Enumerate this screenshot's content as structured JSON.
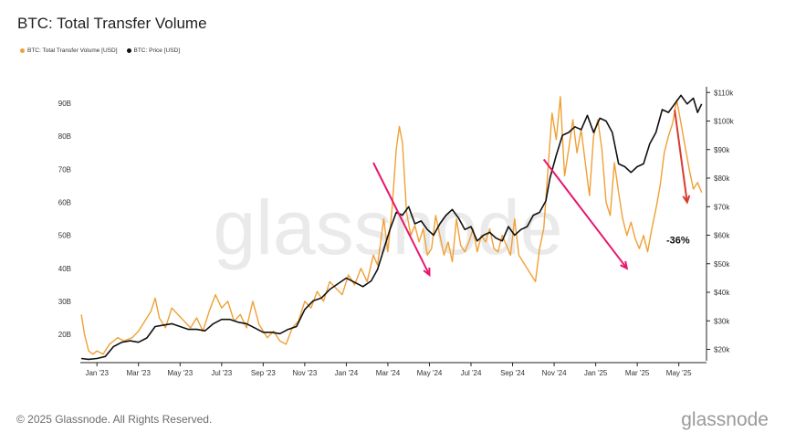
{
  "page": {
    "title": "BTC: Total Transfer Volume",
    "footer_copyright": "© 2025 Glassnode. All Rights Reserved.",
    "footer_brand": "glassnode",
    "watermark": "glassnode"
  },
  "colors": {
    "transfer_volume": "#f0a035",
    "price": "#111111",
    "arrow_pink": "#e6186d",
    "arrow_red": "#d93a2f"
  },
  "chart_data": {
    "type": "line",
    "left_axis": {
      "ticks": [
        "20B",
        "30B",
        "40B",
        "50B",
        "60B",
        "70B",
        "80B",
        "90B"
      ],
      "values": [
        20,
        30,
        40,
        50,
        60,
        70,
        80,
        90
      ],
      "ylim": [
        12,
        95
      ]
    },
    "right_axis": {
      "ticks": [
        "$20k",
        "$30k",
        "$40k",
        "$50k",
        "$60k",
        "$70k",
        "$80k",
        "$90k",
        "$100k",
        "$110k"
      ],
      "values": [
        20,
        30,
        40,
        50,
        60,
        70,
        80,
        90,
        100,
        110
      ],
      "ylim": [
        16,
        112
      ]
    },
    "x_axis": {
      "ticks": [
        "Jan '23",
        "Mar '23",
        "May '23",
        "Jul '23",
        "Sep '23",
        "Nov '23",
        "Jan '24",
        "Mar '24",
        "May '24",
        "Jul '24",
        "Sep '24",
        "Nov '24",
        "Jan '25",
        "Mar '25",
        "May '25"
      ],
      "values": [
        0,
        2,
        4,
        6,
        8,
        10,
        12,
        14,
        16,
        18,
        20,
        22,
        24,
        26,
        28
      ],
      "xlim": [
        -0.8,
        29.2
      ]
    },
    "legend": [
      "BTC: Total Transfer Volume [USD]",
      "BTC: Price [USD]"
    ],
    "series": [
      {
        "name": "BTC: Total Transfer Volume [USD]",
        "axis": "left",
        "points": [
          [
            -0.75,
            26
          ],
          [
            -0.6,
            20
          ],
          [
            -0.4,
            15
          ],
          [
            -0.2,
            14
          ],
          [
            0,
            15
          ],
          [
            0.3,
            14
          ],
          [
            0.6,
            17
          ],
          [
            1.0,
            19
          ],
          [
            1.3,
            18
          ],
          [
            1.7,
            19
          ],
          [
            2.0,
            21
          ],
          [
            2.3,
            24
          ],
          [
            2.6,
            27
          ],
          [
            2.8,
            31
          ],
          [
            3.0,
            25
          ],
          [
            3.3,
            22
          ],
          [
            3.6,
            28
          ],
          [
            3.9,
            26
          ],
          [
            4.2,
            24
          ],
          [
            4.5,
            22
          ],
          [
            4.8,
            25
          ],
          [
            5.1,
            21
          ],
          [
            5.4,
            27
          ],
          [
            5.7,
            32
          ],
          [
            6.0,
            28
          ],
          [
            6.3,
            30
          ],
          [
            6.6,
            24
          ],
          [
            6.9,
            26
          ],
          [
            7.2,
            22
          ],
          [
            7.5,
            30
          ],
          [
            7.8,
            23
          ],
          [
            8.2,
            19
          ],
          [
            8.5,
            21
          ],
          [
            8.8,
            18
          ],
          [
            9.1,
            17
          ],
          [
            9.4,
            22
          ],
          [
            9.7,
            24
          ],
          [
            10.0,
            30
          ],
          [
            10.3,
            28
          ],
          [
            10.6,
            33
          ],
          [
            10.9,
            30
          ],
          [
            11.2,
            36
          ],
          [
            11.5,
            34
          ],
          [
            11.8,
            32
          ],
          [
            12.1,
            38
          ],
          [
            12.4,
            35
          ],
          [
            12.7,
            40
          ],
          [
            13.0,
            36
          ],
          [
            13.3,
            44
          ],
          [
            13.5,
            41
          ],
          [
            13.8,
            55
          ],
          [
            14.0,
            45
          ],
          [
            14.2,
            58
          ],
          [
            14.4,
            76
          ],
          [
            14.55,
            83
          ],
          [
            14.7,
            78
          ],
          [
            14.9,
            57
          ],
          [
            15.1,
            50
          ],
          [
            15.3,
            53
          ],
          [
            15.5,
            48
          ],
          [
            15.7,
            52
          ],
          [
            15.9,
            44
          ],
          [
            16.1,
            46
          ],
          [
            16.3,
            56
          ],
          [
            16.5,
            50
          ],
          [
            16.7,
            44
          ],
          [
            16.9,
            48
          ],
          [
            17.1,
            42
          ],
          [
            17.3,
            55
          ],
          [
            17.5,
            47
          ],
          [
            17.7,
            45
          ],
          [
            17.9,
            48
          ],
          [
            18.1,
            52
          ],
          [
            18.3,
            45
          ],
          [
            18.5,
            50
          ],
          [
            18.7,
            48
          ],
          [
            18.9,
            52
          ],
          [
            19.1,
            46
          ],
          [
            19.3,
            45
          ],
          [
            19.5,
            50
          ],
          [
            19.7,
            47
          ],
          [
            19.9,
            44
          ],
          [
            20.1,
            55
          ],
          [
            20.3,
            44
          ],
          [
            20.5,
            42
          ],
          [
            20.7,
            40
          ],
          [
            20.9,
            38
          ],
          [
            21.1,
            36
          ],
          [
            21.3,
            46
          ],
          [
            21.5,
            52
          ],
          [
            21.7,
            70
          ],
          [
            21.9,
            87
          ],
          [
            22.1,
            79
          ],
          [
            22.3,
            92
          ],
          [
            22.5,
            68
          ],
          [
            22.7,
            76
          ],
          [
            22.9,
            85
          ],
          [
            23.1,
            75
          ],
          [
            23.3,
            82
          ],
          [
            23.5,
            72
          ],
          [
            23.7,
            62
          ],
          [
            23.9,
            80
          ],
          [
            24.1,
            85
          ],
          [
            24.3,
            76
          ],
          [
            24.5,
            60
          ],
          [
            24.7,
            56
          ],
          [
            24.9,
            72
          ],
          [
            25.1,
            63
          ],
          [
            25.3,
            55
          ],
          [
            25.5,
            50
          ],
          [
            25.7,
            54
          ],
          [
            25.9,
            49
          ],
          [
            26.1,
            46
          ],
          [
            26.3,
            50
          ],
          [
            26.5,
            45
          ],
          [
            26.7,
            52
          ],
          [
            26.9,
            58
          ],
          [
            27.1,
            65
          ],
          [
            27.3,
            75
          ],
          [
            27.5,
            80
          ],
          [
            27.7,
            84
          ],
          [
            27.9,
            91
          ],
          [
            28.1,
            84
          ],
          [
            28.3,
            77
          ],
          [
            28.5,
            70
          ],
          [
            28.7,
            64
          ],
          [
            28.9,
            66
          ],
          [
            29.1,
            63
          ]
        ]
      },
      {
        "name": "BTC: Price [USD]",
        "axis": "right",
        "points": [
          [
            -0.75,
            16.8
          ],
          [
            -0.4,
            16.5
          ],
          [
            0,
            16.8
          ],
          [
            0.4,
            17.5
          ],
          [
            0.8,
            21
          ],
          [
            1.2,
            22.5
          ],
          [
            1.6,
            23
          ],
          [
            2.0,
            22.5
          ],
          [
            2.4,
            24
          ],
          [
            2.8,
            28
          ],
          [
            3.2,
            28.5
          ],
          [
            3.6,
            29
          ],
          [
            4.0,
            28
          ],
          [
            4.4,
            27
          ],
          [
            4.8,
            27
          ],
          [
            5.2,
            26.5
          ],
          [
            5.6,
            29
          ],
          [
            6.0,
            30.5
          ],
          [
            6.4,
            30.5
          ],
          [
            6.8,
            29.5
          ],
          [
            7.2,
            29
          ],
          [
            7.6,
            27.5
          ],
          [
            8.0,
            26
          ],
          [
            8.4,
            26
          ],
          [
            8.8,
            25.5
          ],
          [
            9.2,
            27
          ],
          [
            9.6,
            28
          ],
          [
            10.0,
            34
          ],
          [
            10.4,
            37
          ],
          [
            10.8,
            38
          ],
          [
            11.2,
            41
          ],
          [
            11.6,
            43
          ],
          [
            12.0,
            45
          ],
          [
            12.4,
            43.5
          ],
          [
            12.8,
            42
          ],
          [
            13.2,
            44
          ],
          [
            13.5,
            48
          ],
          [
            13.8,
            55
          ],
          [
            14.1,
            62
          ],
          [
            14.4,
            68
          ],
          [
            14.7,
            67
          ],
          [
            15.0,
            70
          ],
          [
            15.3,
            64
          ],
          [
            15.6,
            65
          ],
          [
            15.9,
            62
          ],
          [
            16.2,
            60
          ],
          [
            16.5,
            64
          ],
          [
            16.8,
            67
          ],
          [
            17.1,
            69
          ],
          [
            17.4,
            66
          ],
          [
            17.7,
            62
          ],
          [
            18.0,
            63
          ],
          [
            18.3,
            58
          ],
          [
            18.6,
            60
          ],
          [
            18.9,
            61
          ],
          [
            19.2,
            59
          ],
          [
            19.5,
            58
          ],
          [
            19.8,
            63
          ],
          [
            20.1,
            60
          ],
          [
            20.4,
            62
          ],
          [
            20.7,
            63
          ],
          [
            21.0,
            67
          ],
          [
            21.3,
            68
          ],
          [
            21.6,
            72
          ],
          [
            21.8,
            80
          ],
          [
            22.1,
            88
          ],
          [
            22.4,
            95
          ],
          [
            22.7,
            96
          ],
          [
            23.0,
            98
          ],
          [
            23.3,
            97
          ],
          [
            23.6,
            102
          ],
          [
            23.9,
            96
          ],
          [
            24.2,
            101
          ],
          [
            24.5,
            100
          ],
          [
            24.8,
            96
          ],
          [
            25.1,
            85
          ],
          [
            25.4,
            84
          ],
          [
            25.7,
            82
          ],
          [
            26.0,
            84
          ],
          [
            26.3,
            85
          ],
          [
            26.6,
            92
          ],
          [
            26.9,
            96
          ],
          [
            27.2,
            104
          ],
          [
            27.5,
            103
          ],
          [
            27.8,
            106
          ],
          [
            28.1,
            109
          ],
          [
            28.4,
            106
          ],
          [
            28.7,
            108
          ],
          [
            28.9,
            103
          ],
          [
            29.1,
            106
          ]
        ]
      }
    ],
    "annotations": [
      {
        "text": "-36%"
      }
    ]
  }
}
